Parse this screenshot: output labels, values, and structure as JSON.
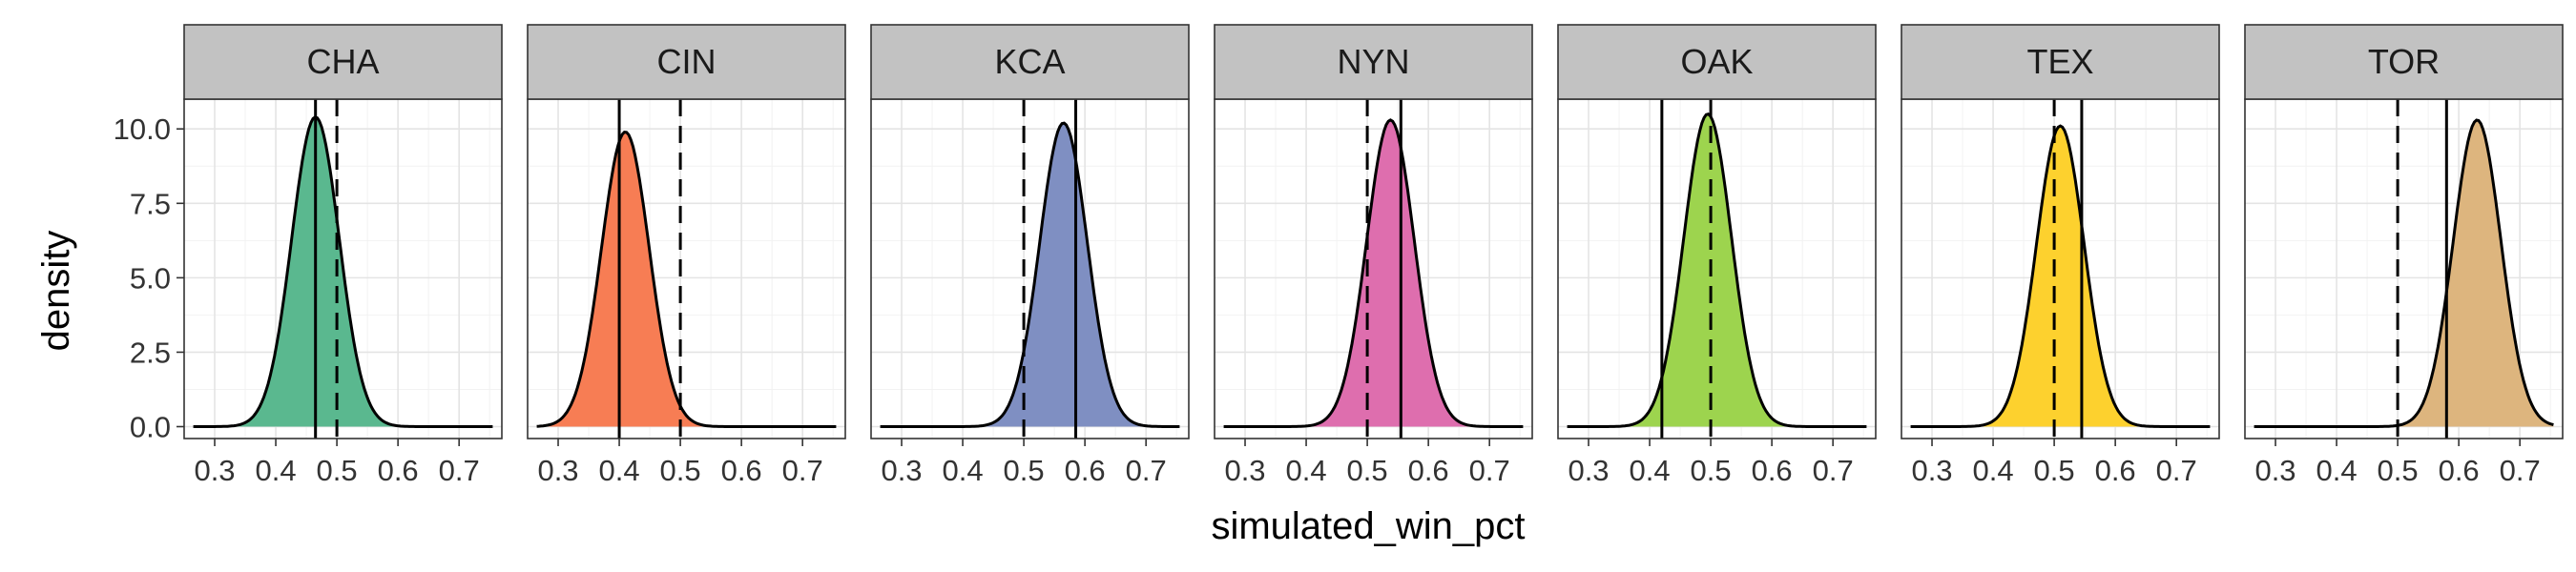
{
  "chart_data": {
    "type": "area",
    "xlabel": "simulated_win_pct",
    "ylabel": "density",
    "xlim": [
      0.25,
      0.77
    ],
    "ylim": [
      -0.4,
      11.0
    ],
    "x_ticks": [
      0.3,
      0.4,
      0.5,
      0.6,
      0.7
    ],
    "x_tick_labels": [
      "0.3",
      "0.4",
      "0.5",
      "0.6",
      "0.7"
    ],
    "y_ticks": [
      0.0,
      2.5,
      5.0,
      7.5,
      10.0
    ],
    "y_tick_labels": [
      "0.0",
      "2.5",
      "5.0",
      "7.5",
      "10.0"
    ],
    "grid": true,
    "facets": [
      {
        "name": "CHA",
        "color": "#5AB88F",
        "peak_x": 0.465,
        "peak_y": 10.4,
        "solid_line": 0.465,
        "dashed_line": 0.5
      },
      {
        "name": "CIN",
        "color": "#F77D54",
        "peak_x": 0.41,
        "peak_y": 9.9,
        "solid_line": 0.4,
        "dashed_line": 0.5
      },
      {
        "name": "KCA",
        "color": "#7F8FC2",
        "peak_x": 0.565,
        "peak_y": 10.2,
        "solid_line": 0.585,
        "dashed_line": 0.5
      },
      {
        "name": "NYN",
        "color": "#DE6EAE",
        "peak_x": 0.538,
        "peak_y": 10.3,
        "solid_line": 0.555,
        "dashed_line": 0.5
      },
      {
        "name": "OAK",
        "color": "#9DD44E",
        "peak_x": 0.495,
        "peak_y": 10.5,
        "solid_line": 0.42,
        "dashed_line": 0.5
      },
      {
        "name": "TEX",
        "color": "#FDD12E",
        "peak_x": 0.51,
        "peak_y": 10.1,
        "solid_line": 0.545,
        "dashed_line": 0.5
      },
      {
        "name": "TOR",
        "color": "#DDB57E",
        "peak_x": 0.63,
        "peak_y": 10.3,
        "solid_line": 0.58,
        "dashed_line": 0.5
      }
    ]
  }
}
